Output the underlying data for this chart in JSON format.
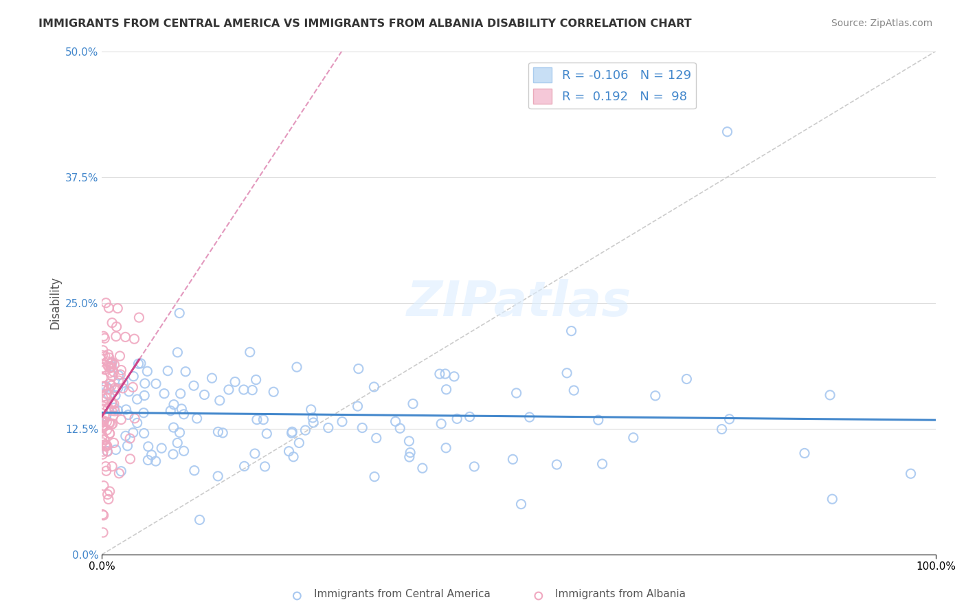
{
  "title": "IMMIGRANTS FROM CENTRAL AMERICA VS IMMIGRANTS FROM ALBANIA DISABILITY CORRELATION CHART",
  "source": "Source: ZipAtlas.com",
  "ylabel": "Disability",
  "xlim": [
    0.0,
    1.0
  ],
  "ylim": [
    0.0,
    0.5
  ],
  "xtick_labels": [
    "0.0%",
    "100.0%"
  ],
  "ytick_labels": [
    "0.0%",
    "12.5%",
    "25.0%",
    "37.5%",
    "50.0%"
  ],
  "ytick_vals": [
    0.0,
    0.125,
    0.25,
    0.375,
    0.5
  ],
  "legend_blue_r": "-0.106",
  "legend_blue_n": "129",
  "legend_pink_r": "0.192",
  "legend_pink_n": "98",
  "blue_color": "#a8c8f0",
  "pink_color": "#f0a8c0",
  "blue_line_color": "#4488cc",
  "pink_line_color": "#cc4488",
  "diag_line_color": "#cccccc",
  "background_color": "#ffffff",
  "watermark": "ZIPatlas",
  "legend_blue_face": "#c8dff5",
  "legend_pink_face": "#f5c8d8"
}
